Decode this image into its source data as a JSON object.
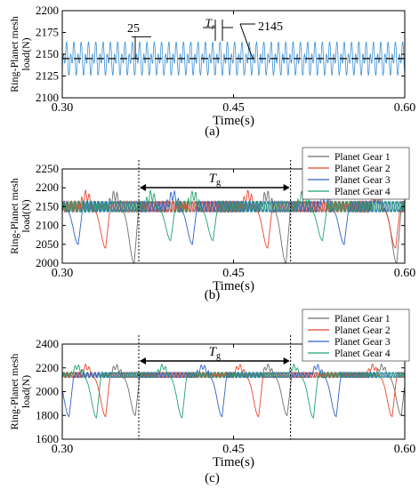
{
  "colors": {
    "axis": "#000000",
    "mean_line": "#000000",
    "planet_gear_1": "#6d6d6d",
    "planet_gear_2": "#e8452e",
    "planet_gear_3": "#2f62c8",
    "planet_gear_4": "#21a36b",
    "single_series": "#3a8fd6"
  },
  "chart_data": [
    {
      "panel_label": "(a)",
      "type": "line",
      "xlabel": "Time(s)",
      "ylabel": "Ring-Planet mesh load(N)",
      "xlim": [
        0.3,
        0.6
      ],
      "ylim": [
        2100,
        2200
      ],
      "xticks": [
        0.3,
        0.45,
        0.6
      ],
      "yticks": [
        2100,
        2125,
        2150,
        2175,
        2200
      ],
      "legend": null,
      "grid": false,
      "series": [
        {
          "color_key": "single_series",
          "mean": 2145,
          "min": 2120,
          "max": 2170,
          "period_s": 0.0064
        }
      ],
      "reference_lines": [
        {
          "y": 2145,
          "style": "dashed"
        }
      ],
      "annotations": [
        {
          "text": "25",
          "kind": "amplitude",
          "value": 25
        },
        {
          "text": "2145",
          "kind": "mean",
          "value": 2145
        },
        {
          "text": "T",
          "subscript": "r",
          "kind": "mesh-period"
        }
      ]
    },
    {
      "panel_label": "(b)",
      "type": "line",
      "xlabel": "Time(s)",
      "ylabel": "Ring-Planet mesh load(N)",
      "xlim": [
        0.3,
        0.6
      ],
      "ylim": [
        2000,
        2250
      ],
      "xticks": [
        0.3,
        0.45,
        0.6
      ],
      "yticks": [
        2000,
        2050,
        2100,
        2150,
        2200,
        2250
      ],
      "grid": false,
      "legend_position": "top-right",
      "series": [
        {
          "name": "Planet Gear 1",
          "color_key": "planet_gear_1",
          "dip_times": [
            0.363,
            0.496,
            0.593
          ],
          "dip_min": 2000
        },
        {
          "name": "Planet Gear 2",
          "color_key": "planet_gear_2",
          "dip_times": [
            0.338,
            0.48,
            0.592
          ],
          "dip_min": 2040
        },
        {
          "name": "Planet Gear 3",
          "color_key": "planet_gear_3",
          "dip_times": [
            0.314,
            0.414,
            0.547
          ],
          "dip_min": 2050
        },
        {
          "name": "Planet Gear 4",
          "color_key": "planet_gear_4",
          "dip_times": [
            0.395,
            0.432,
            0.528
          ],
          "dip_min": 2060
        }
      ],
      "baseline": 2150,
      "bracket": {
        "text": "T",
        "subscript": "g",
        "x_start": 0.367,
        "x_end": 0.5
      }
    },
    {
      "panel_label": "(c)",
      "type": "line",
      "xlabel": "Time(s)",
      "ylabel": "Ring-Planet mesh load(N)",
      "xlim": [
        0.3,
        0.6
      ],
      "ylim": [
        1600,
        2400
      ],
      "xticks": [
        0.3,
        0.45,
        0.6
      ],
      "yticks": [
        1600,
        1800,
        2000,
        2200,
        2400
      ],
      "grid": false,
      "legend_position": "top-right",
      "series": [
        {
          "name": "Planet Gear 1",
          "color_key": "planet_gear_1",
          "dip_times": [
            0.364,
            0.497,
            0.597
          ],
          "dip_min": 1800
        },
        {
          "name": "Planet Gear 2",
          "color_key": "planet_gear_2",
          "dip_times": [
            0.338,
            0.472,
            0.589
          ],
          "dip_min": 1790
        },
        {
          "name": "Planet Gear 3",
          "color_key": "planet_gear_3",
          "dip_times": [
            0.306,
            0.44,
            0.54
          ],
          "dip_min": 1790
        },
        {
          "name": "Planet Gear 4",
          "color_key": "planet_gear_4",
          "dip_times": [
            0.33,
            0.405,
            0.52
          ],
          "dip_min": 1780
        }
      ],
      "baseline": 2140,
      "bracket": {
        "text": "T",
        "subscript": "g",
        "x_start": 0.367,
        "x_end": 0.5
      }
    }
  ]
}
